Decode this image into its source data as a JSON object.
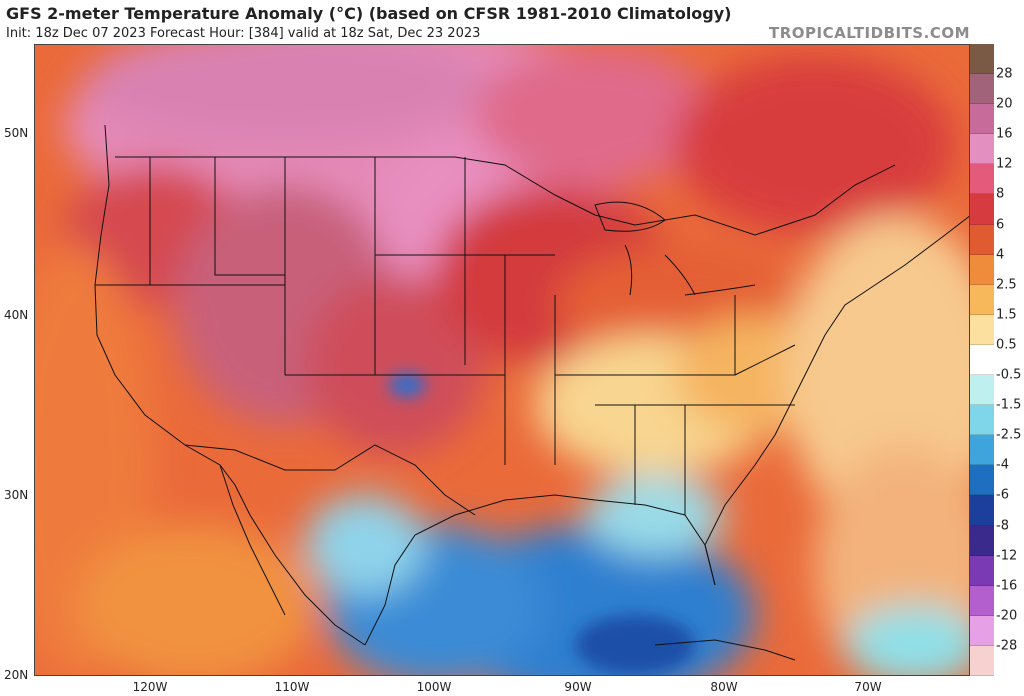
{
  "header": {
    "title": "GFS 2-meter Temperature Anomaly (°C) (based on CFSR 1981-2010 Climatology)",
    "subtitle": "Init: 18z Dec 07 2023   Forecast Hour: [384]   valid at 18z Sat, Dec 23 2023",
    "watermark": "TROPICALTIDBITS.COM"
  },
  "map": {
    "lat_labels": [
      "50N",
      "40N",
      "30N",
      "20N"
    ],
    "lon_labels": [
      "120W",
      "110W",
      "100W",
      "90W",
      "80W",
      "70W"
    ],
    "extent": {
      "lon_min": -128,
      "lon_max": -63,
      "lat_min": 20,
      "lat_max": 55
    }
  },
  "colorbar": {
    "labels": [
      "28",
      "20",
      "16",
      "12",
      "8",
      "6",
      "4",
      "2.5",
      "1.5",
      "0.5",
      "-0.5",
      "-1.5",
      "-2.5",
      "-4",
      "-6",
      "-8",
      "-12",
      "-16",
      "-20",
      "-28"
    ],
    "colors": [
      "#7a5a44",
      "#a1637a",
      "#c76b9b",
      "#e38fc0",
      "#e35a7a",
      "#d63c3f",
      "#e05b2f",
      "#ef8c3c",
      "#f6b85a",
      "#fbe0a0",
      "#ffffff",
      "#bff0f0",
      "#7fd6e8",
      "#3fa3dc",
      "#1f6fc0",
      "#1b3f9a",
      "#3a2a8c",
      "#7a3ab4",
      "#b35fce",
      "#e6a0e6",
      "#f7d0d0"
    ]
  }
}
